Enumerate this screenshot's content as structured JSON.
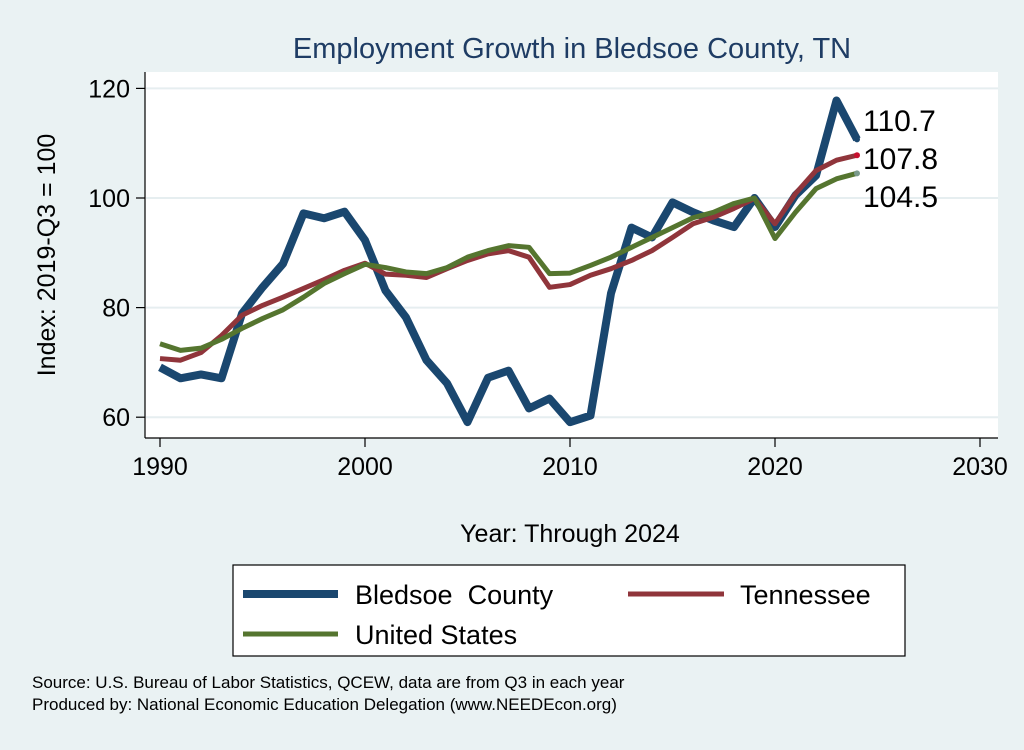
{
  "chart_data": {
    "type": "line",
    "title": "Employment Growth in Bledsoe County, TN",
    "xlabel": "Year: Through 2024",
    "ylabel": "Index: 2019-Q3 = 100",
    "xlim": [
      1990,
      2030
    ],
    "ylim": [
      57,
      123
    ],
    "xticks": [
      1990,
      2000,
      2010,
      2020,
      2030
    ],
    "yticks": [
      60,
      80,
      100,
      120
    ],
    "grid": true,
    "legend_position": "bottom",
    "x": [
      1990,
      1991,
      1992,
      1993,
      1994,
      1995,
      1996,
      1997,
      1998,
      1999,
      2000,
      2001,
      2002,
      2003,
      2004,
      2005,
      2006,
      2007,
      2008,
      2009,
      2010,
      2011,
      2012,
      2013,
      2014,
      2015,
      2016,
      2017,
      2018,
      2019,
      2020,
      2021,
      2022,
      2023,
      2024
    ],
    "series": [
      {
        "name": "Bledsoe  County",
        "color": "#1a476f",
        "width": 8,
        "values": [
          69.1,
          67.1,
          67.8,
          67.1,
          78.9,
          83.7,
          88.0,
          97.2,
          96.3,
          97.5,
          92.3,
          83.1,
          78.2,
          70.4,
          66.2,
          59.1,
          67.2,
          68.5,
          61.6,
          63.4,
          59.1,
          60.3,
          82.6,
          94.6,
          92.8,
          99.2,
          97.4,
          95.9,
          94.7,
          100.0,
          94.7,
          100.5,
          104.1,
          117.8,
          110.7
        ],
        "end_label": "110.7"
      },
      {
        "name": "Tennessee",
        "color": "#90353b",
        "width": 5,
        "values": [
          70.7,
          70.4,
          71.8,
          74.9,
          78.6,
          80.4,
          81.9,
          83.5,
          85.1,
          86.8,
          88.1,
          86.1,
          85.9,
          85.5,
          87.1,
          88.6,
          89.8,
          90.4,
          89.2,
          83.7,
          84.2,
          85.9,
          87.1,
          88.6,
          90.4,
          92.8,
          95.3,
          96.5,
          98.1,
          99.9,
          95.3,
          100.8,
          105.0,
          106.9,
          107.8
        ],
        "end_label": "107.8"
      },
      {
        "name": "United States",
        "color": "#55752f",
        "width": 5,
        "values": [
          73.4,
          72.2,
          72.6,
          74.2,
          76.2,
          78.0,
          79.6,
          81.9,
          84.4,
          86.2,
          87.9,
          87.3,
          86.5,
          86.2,
          87.3,
          89.2,
          90.4,
          91.3,
          91.0,
          86.2,
          86.3,
          87.7,
          89.2,
          91.0,
          92.8,
          94.6,
          96.4,
          97.4,
          99.0,
          100.0,
          92.6,
          97.4,
          101.7,
          103.5,
          104.5
        ],
        "end_label": "104.5"
      }
    ]
  },
  "notes": {
    "source": "Source: U.S. Bureau of Labor Statistics, QCEW, data are from Q3 in each year",
    "producer": "Produced by: National Economic Education Delegation (www.NEEDEcon.org)"
  }
}
